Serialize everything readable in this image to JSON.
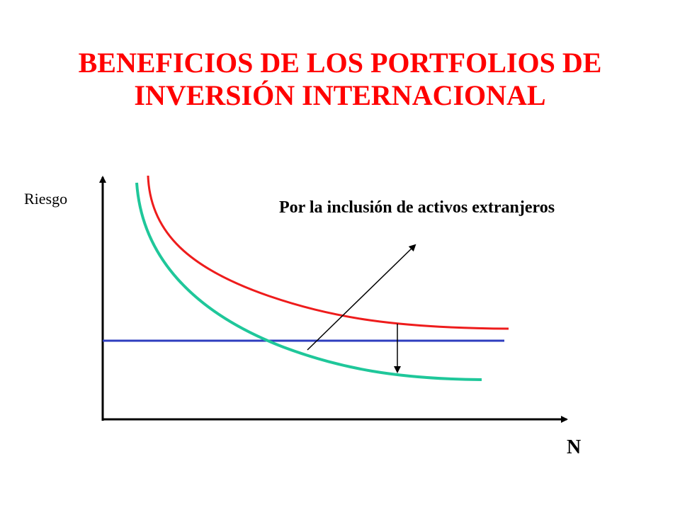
{
  "slide": {
    "title_line1": "BENEFICIOS DE LOS PORTFOLIOS DE",
    "title_line2": "INVERSIÓN INTERNACIONAL"
  },
  "diagram": {
    "y_axis_label": "Riesgo",
    "x_axis_label": "N",
    "annotation": "Por la inclusión de activos extranjeros",
    "colors": {
      "title": "#ff0000",
      "domestic_curve": "#ee1c1c",
      "international_curve": "#1fc79a",
      "systematic_risk_line": "#2e3dbf",
      "axes": "#000000"
    }
  }
}
